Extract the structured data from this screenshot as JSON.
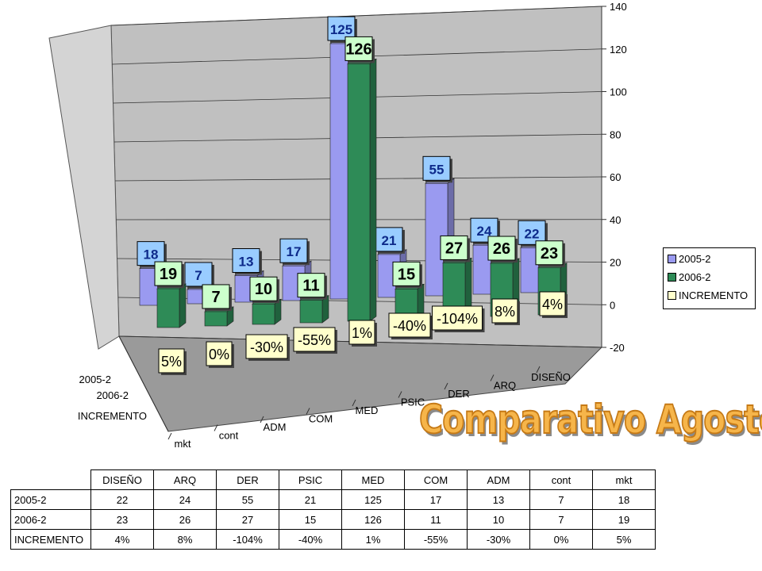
{
  "chart_data": {
    "type": "bar",
    "title": "Comparativo Agosto",
    "categories": [
      "DISEÑO",
      "ARQ",
      "DER",
      "PSIC",
      "MED",
      "COM",
      "ADM",
      "cont",
      "mkt"
    ],
    "series": [
      {
        "name": "2005-2",
        "values": [
          22,
          24,
          55,
          21,
          125,
          17,
          13,
          7,
          18
        ],
        "color": "#9a9af0"
      },
      {
        "name": "2006-2",
        "values": [
          23,
          26,
          27,
          15,
          126,
          11,
          10,
          7,
          19
        ],
        "color": "#2e8b57"
      },
      {
        "name": "INCREMENTO",
        "values": [
          "4%",
          "8%",
          "-104%",
          "-40%",
          "1%",
          "-55%",
          "-30%",
          "0%",
          "5%"
        ],
        "color": "#ffffcc"
      }
    ],
    "yaxis_ticks": [
      "140",
      "120",
      "100",
      "80",
      "60",
      "40",
      "20",
      "0",
      "-20"
    ],
    "ylim": [
      -20,
      140
    ],
    "depth_labels": [
      "2005-2",
      "2006-2",
      "INCREMENTO"
    ],
    "legend_position": "right",
    "grid": true
  },
  "table": {
    "headers": [
      "DISEÑO",
      "ARQ",
      "DER",
      "PSIC",
      "MED",
      "COM",
      "ADM",
      "cont",
      "mkt"
    ],
    "rows": [
      {
        "label": "2005-2",
        "cells": [
          "22",
          "24",
          "55",
          "21",
          "125",
          "17",
          "13",
          "7",
          "18"
        ]
      },
      {
        "label": "2006-2",
        "cells": [
          "23",
          "26",
          "27",
          "15",
          "126",
          "11",
          "10",
          "7",
          "19"
        ]
      },
      {
        "label": "INCREMENTO",
        "cells": [
          "4%",
          "8%",
          "-104%",
          "-40%",
          "1%",
          "-55%",
          "-30%",
          "0%",
          "5%"
        ]
      }
    ]
  }
}
